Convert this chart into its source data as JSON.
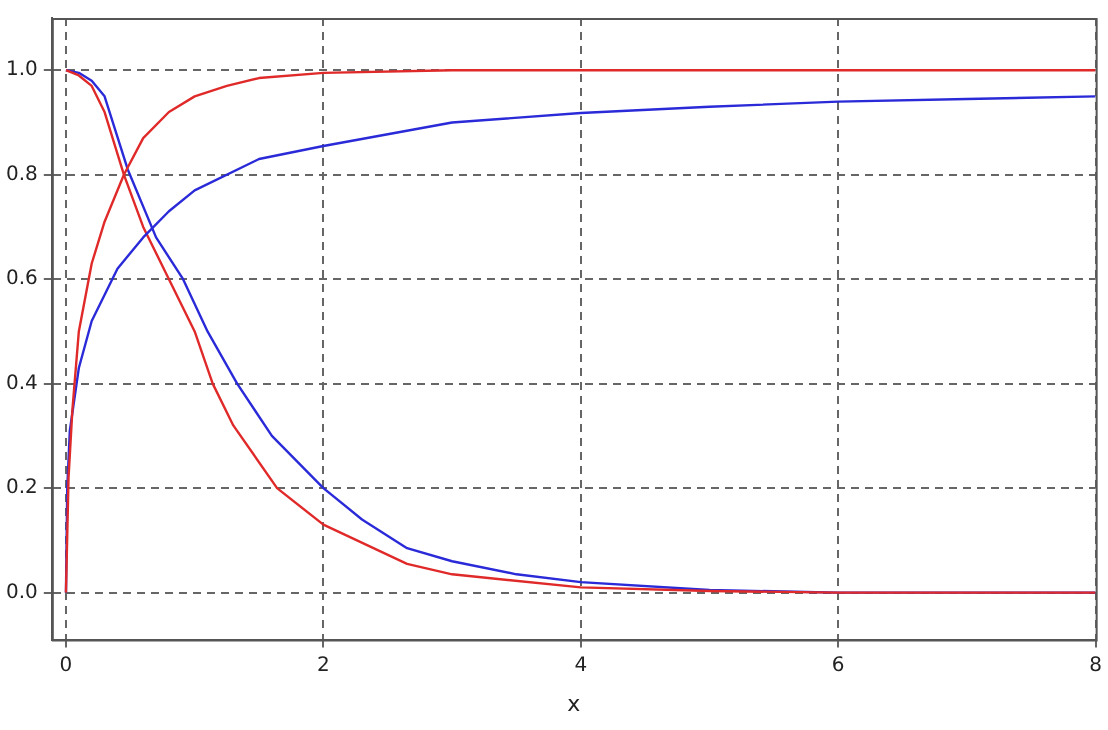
{
  "chart_data": {
    "type": "line",
    "xlabel": "x",
    "xlim": [
      -0.11,
      8
    ],
    "ylim": [
      -0.09,
      1.1
    ],
    "xticks": [
      0,
      2,
      4,
      6,
      8
    ],
    "yticks": [
      {
        "value": 0,
        "label": "0.0"
      },
      {
        "value": 0.2,
        "label": "0.2"
      },
      {
        "value": 0.4,
        "label": "0.4"
      },
      {
        "value": 0.6,
        "label": "0.6"
      },
      {
        "value": 0.8,
        "label": "0.8"
      },
      {
        "value": 1,
        "label": "1.0"
      }
    ],
    "grid": true,
    "legend": false,
    "marker": "none",
    "line_style": "solid",
    "series": [
      {
        "color": "#e02a2a",
        "x": [
          0,
          0.02,
          0.05,
          0.1,
          0.2,
          0.3,
          0.45,
          0.6,
          0.8,
          1,
          1.25,
          1.5,
          2,
          3,
          8
        ],
        "values": [
          0,
          0.22,
          0.35,
          0.5,
          0.63,
          0.71,
          0.8,
          0.87,
          0.92,
          0.95,
          0.97,
          0.985,
          0.995,
          1,
          1
        ]
      },
      {
        "color": "#2a2ad8",
        "x": [
          0,
          0.01,
          0.03,
          0.1,
          0.2,
          0.4,
          0.6,
          0.8,
          1,
          1.5,
          2,
          3,
          4,
          5,
          6,
          7,
          8
        ],
        "values": [
          0,
          0.2,
          0.31,
          0.43,
          0.52,
          0.62,
          0.68,
          0.73,
          0.77,
          0.83,
          0.855,
          0.9,
          0.918,
          0.93,
          0.94,
          0.945,
          0.95
        ]
      },
      {
        "color": "#e02a2a",
        "x": [
          0,
          0.1,
          0.2,
          0.3,
          0.45,
          0.6,
          0.8,
          1,
          1.14,
          1.3,
          1.64,
          2,
          2.65,
          3,
          4,
          5,
          6,
          8
        ],
        "values": [
          1,
          0.99,
          0.97,
          0.92,
          0.8,
          0.7,
          0.6,
          0.5,
          0.4,
          0.32,
          0.2,
          0.13,
          0.055,
          0.035,
          0.01,
          0.003,
          0,
          0
        ]
      },
      {
        "color": "#2a2ad8",
        "x": [
          0,
          0.1,
          0.2,
          0.3,
          0.48,
          0.7,
          0.91,
          1.1,
          1.33,
          1.6,
          2,
          2.3,
          2.65,
          3,
          3.5,
          4,
          5,
          6,
          8
        ],
        "values": [
          1,
          0.995,
          0.98,
          0.95,
          0.81,
          0.68,
          0.6,
          0.5,
          0.4,
          0.3,
          0.2,
          0.14,
          0.085,
          0.06,
          0.035,
          0.02,
          0.005,
          0,
          0
        ]
      }
    ]
  }
}
